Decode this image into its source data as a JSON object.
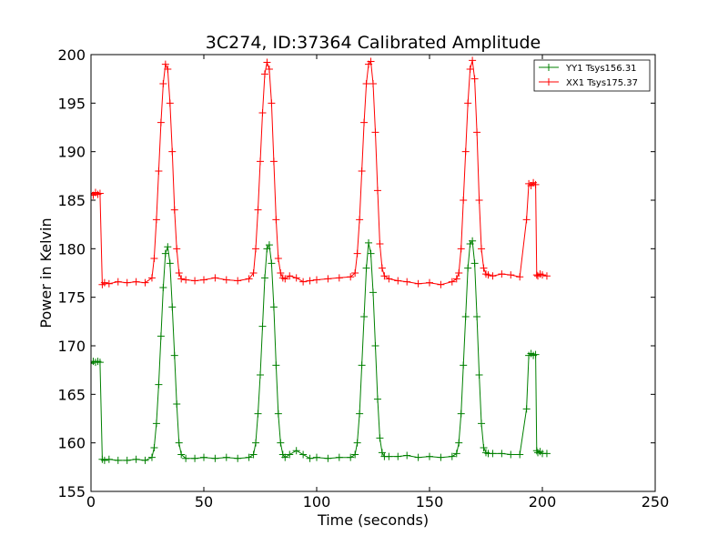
{
  "chart_data": {
    "type": "line",
    "title": "3C274, ID:37364 Calibrated Amplitude",
    "xlabel": "Time (seconds)",
    "ylabel": "Power in Kelvin",
    "xlim": [
      0,
      250
    ],
    "ylim": [
      155,
      200
    ],
    "xticks": [
      "0",
      "50",
      "100",
      "150",
      "200",
      "250"
    ],
    "yticks": [
      "155",
      "160",
      "165",
      "170",
      "175",
      "180",
      "185",
      "190",
      "195",
      "200"
    ],
    "grid": false,
    "legend_position": "top-right",
    "marker": "plus",
    "series": [
      {
        "name": "YY1 Tsys156.31",
        "color": "#008000",
        "x": [
          0,
          1,
          2,
          3,
          4,
          5,
          6,
          8,
          12,
          16,
          20,
          24,
          27,
          28,
          29,
          30,
          31,
          32,
          33,
          34,
          35,
          36,
          37,
          38,
          39,
          40,
          42,
          46,
          50,
          55,
          60,
          65,
          70,
          72,
          73,
          74,
          75,
          76,
          77,
          78,
          79,
          80,
          81,
          82,
          83,
          84,
          85,
          86,
          88,
          91,
          94,
          97,
          100,
          105,
          110,
          115,
          117,
          118,
          119,
          120,
          121,
          122,
          123,
          124,
          125,
          126,
          127,
          128,
          129,
          130,
          132,
          136,
          140,
          145,
          150,
          155,
          160,
          162,
          163,
          164,
          165,
          166,
          167,
          168,
          169,
          170,
          171,
          172,
          173,
          174,
          175,
          176,
          178,
          182,
          186,
          190,
          193,
          194,
          195,
          196,
          197,
          197.5,
          198,
          199,
          200,
          202
        ],
        "y": [
          168.2,
          168.4,
          168.3,
          168.4,
          168.3,
          158.3,
          158.2,
          158.3,
          158.2,
          158.2,
          158.3,
          158.2,
          158.5,
          159.5,
          162,
          166,
          171,
          176,
          179.5,
          180.2,
          178.5,
          174,
          169,
          164,
          160,
          158.8,
          158.4,
          158.4,
          158.5,
          158.4,
          158.5,
          158.4,
          158.5,
          158.8,
          160,
          163,
          167,
          172,
          177,
          180,
          180.4,
          178.5,
          174,
          168,
          163,
          160,
          158.8,
          158.5,
          158.8,
          159.2,
          158.8,
          158.4,
          158.5,
          158.4,
          158.5,
          158.5,
          158.8,
          160,
          163,
          168,
          173,
          178,
          180.6,
          179.5,
          175.5,
          170,
          164.5,
          160.5,
          159,
          158.6,
          158.6,
          158.6,
          158.7,
          158.5,
          158.6,
          158.5,
          158.6,
          158.9,
          160,
          163,
          168,
          173,
          178,
          180.5,
          180.8,
          178.5,
          173,
          167,
          162,
          159.5,
          159,
          158.9,
          158.9,
          158.9,
          158.8,
          158.8,
          163.5,
          169,
          169.2,
          169,
          169.1,
          159.2,
          159,
          159.1,
          158.9,
          158.9
        ]
      },
      {
        "name": "XX1 Tsys175.37",
        "color": "#ff0000",
        "x": [
          0,
          1,
          2,
          3,
          4,
          5,
          6,
          8,
          12,
          16,
          20,
          24,
          27,
          28,
          29,
          30,
          31,
          32,
          33,
          34,
          35,
          36,
          37,
          38,
          39,
          40,
          42,
          46,
          50,
          55,
          60,
          65,
          70,
          72,
          73,
          74,
          75,
          76,
          77,
          78,
          79,
          80,
          81,
          82,
          83,
          84,
          85,
          86,
          88,
          91,
          94,
          97,
          100,
          105,
          110,
          115,
          117,
          118,
          119,
          120,
          121,
          122,
          123,
          124,
          125,
          126,
          127,
          128,
          129,
          130,
          132,
          136,
          140,
          145,
          150,
          155,
          160,
          162,
          163,
          164,
          165,
          166,
          167,
          168,
          169,
          170,
          171,
          172,
          173,
          174,
          175,
          176,
          178,
          182,
          186,
          190,
          193,
          194,
          195,
          196,
          197,
          197.5,
          198,
          199,
          200,
          202
        ],
        "y": [
          185.7,
          185.5,
          185.8,
          185.6,
          185.7,
          176.3,
          176.5,
          176.4,
          176.6,
          176.5,
          176.6,
          176.5,
          177,
          179,
          183,
          188,
          193,
          197,
          199,
          198.5,
          195,
          190,
          184,
          180,
          177.5,
          176.9,
          176.8,
          176.7,
          176.8,
          177,
          176.8,
          176.7,
          176.9,
          177.5,
          180,
          184,
          189,
          194,
          198,
          199.2,
          198.5,
          195,
          189,
          183,
          179,
          177.5,
          177,
          176.9,
          177.2,
          177,
          176.6,
          176.7,
          176.8,
          176.9,
          177,
          177.1,
          177.5,
          179.5,
          183,
          188,
          193,
          197,
          199,
          199.3,
          197,
          192,
          186,
          180.5,
          178,
          177.2,
          176.9,
          176.7,
          176.6,
          176.4,
          176.5,
          176.3,
          176.6,
          176.9,
          177.5,
          180,
          185,
          190,
          195,
          198.5,
          199.4,
          197.5,
          192,
          185,
          180,
          178,
          177.4,
          177.3,
          177.2,
          177.4,
          177.3,
          177.1,
          183,
          186.7,
          186.5,
          186.8,
          186.6,
          177.3,
          177.2,
          177.4,
          177.3,
          177.2
        ]
      }
    ]
  }
}
